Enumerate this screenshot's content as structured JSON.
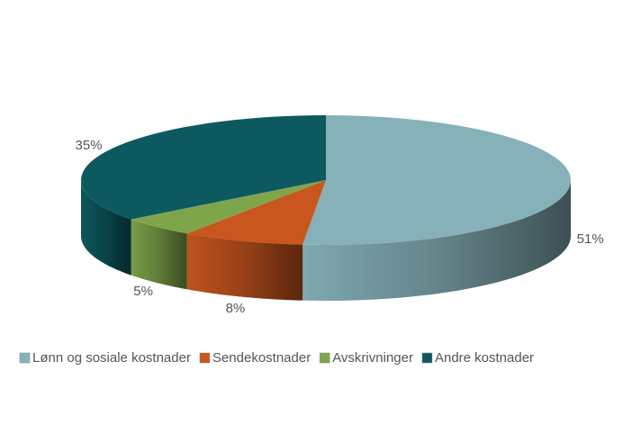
{
  "chart_data": {
    "type": "pie",
    "categories": [
      "Lønn og sosiale kostnader",
      "Sendekostnader",
      "Avskrivninger",
      "Andre kostnader"
    ],
    "values": [
      51,
      8,
      5,
      35
    ],
    "value_labels": [
      "51%",
      "8%",
      "5%",
      "35%"
    ],
    "colors": [
      "#86b1b9",
      "#c8561e",
      "#7fa54b",
      "#0c5a60"
    ],
    "legend": "bottom"
  }
}
